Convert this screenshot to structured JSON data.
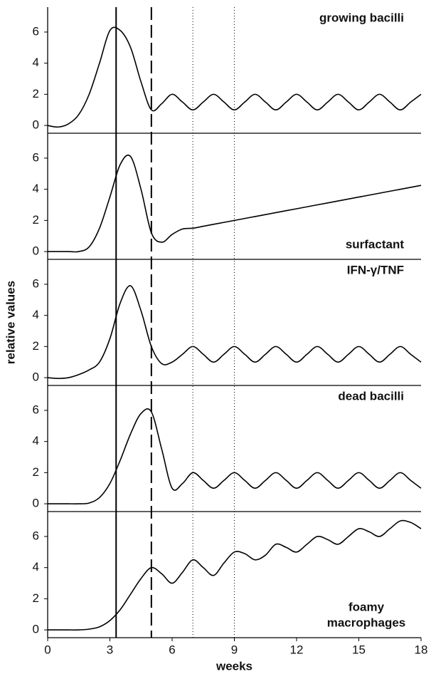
{
  "chart_data": [
    {
      "type": "line",
      "label": "growing bacilli",
      "label_position": "top",
      "x": [
        0,
        0.5,
        1,
        1.5,
        2,
        2.5,
        3,
        3.5,
        4,
        4.5,
        5,
        5.5,
        6,
        6.5,
        7,
        7.5,
        8,
        8.5,
        9,
        9.5,
        10,
        10.5,
        11,
        11.5,
        12,
        12.5,
        13,
        13.5,
        14,
        14.5,
        15,
        15.5,
        16,
        16.5,
        17,
        17.5,
        18
      ],
      "values": [
        0,
        -0.1,
        0.1,
        0.7,
        2.0,
        4.0,
        6.1,
        6.1,
        5.0,
        2.8,
        1.0,
        1.4,
        2,
        1.5,
        1,
        1.5,
        2,
        1.5,
        1,
        1.5,
        2,
        1.5,
        1,
        1.5,
        2,
        1.5,
        1,
        1.5,
        2,
        1.5,
        1,
        1.5,
        2,
        1.5,
        1,
        1.5,
        2
      ],
      "color": "#000000",
      "xlim": [
        0,
        18
      ],
      "ylim": [
        -0.5,
        7.6
      ],
      "yticks": [
        0,
        2,
        4,
        6
      ]
    },
    {
      "type": "line",
      "label": "surfactant",
      "label_position": "bottom",
      "x": [
        0,
        0.5,
        1,
        1.5,
        2,
        2.5,
        3,
        3.5,
        4,
        4.5,
        5,
        5.5,
        6,
        6.5,
        7,
        7.5,
        8,
        8.5,
        9,
        9.5,
        10,
        10.5,
        11,
        11.5,
        12,
        12.5,
        13,
        13.5,
        14,
        14.5,
        15,
        15.5,
        16,
        16.5,
        17,
        17.5,
        18
      ],
      "values": [
        0,
        0,
        0,
        0,
        0.3,
        1.5,
        3.5,
        5.6,
        6.1,
        4.0,
        1.2,
        0.6,
        1.1,
        1.45,
        1.5,
        1.625,
        1.75,
        1.875,
        2.0,
        2.125,
        2.25,
        2.375,
        2.5,
        2.625,
        2.75,
        2.875,
        3.0,
        3.125,
        3.25,
        3.375,
        3.5,
        3.625,
        3.75,
        3.875,
        4.0,
        4.125,
        4.25
      ],
      "color": "#000000",
      "xlim": [
        0,
        18
      ],
      "ylim": [
        -0.5,
        7.6
      ],
      "yticks": [
        0,
        2,
        4,
        6
      ]
    },
    {
      "type": "line",
      "label": "IFN-γ/TNF",
      "label_position": "top",
      "ylabel": "relative values",
      "x": [
        0,
        0.5,
        1,
        1.5,
        2,
        2.5,
        3,
        3.5,
        4,
        4.5,
        5,
        5.5,
        6,
        6.5,
        7,
        7.5,
        8,
        8.5,
        9,
        9.5,
        10,
        10.5,
        11,
        11.5,
        12,
        12.5,
        13,
        13.5,
        14,
        14.5,
        15,
        15.5,
        16,
        16.5,
        17,
        17.5,
        18
      ],
      "values": [
        0,
        -0.05,
        0,
        0.2,
        0.5,
        1.0,
        2.5,
        4.8,
        5.9,
        4.3,
        2.0,
        0.9,
        1.0,
        1.5,
        2,
        1.5,
        1,
        1.5,
        2,
        1.5,
        1,
        1.5,
        2,
        1.5,
        1,
        1.5,
        2,
        1.5,
        1,
        1.5,
        2,
        1.5,
        1,
        1.5,
        2,
        1.5,
        1
      ],
      "color": "#000000",
      "xlim": [
        0,
        18
      ],
      "ylim": [
        -0.5,
        7.6
      ],
      "yticks": [
        0,
        2,
        4,
        6
      ]
    },
    {
      "type": "line",
      "label": "dead bacilli",
      "label_position": "top",
      "x": [
        0,
        0.5,
        1,
        1.5,
        2,
        2.5,
        3,
        3.5,
        4,
        4.5,
        5,
        5.5,
        6,
        6.5,
        7,
        7.5,
        8,
        8.5,
        9,
        9.5,
        10,
        10.5,
        11,
        11.5,
        12,
        12.5,
        13,
        13.5,
        14,
        14.5,
        15,
        15.5,
        16,
        16.5,
        17,
        17.5,
        18
      ],
      "values": [
        0,
        0,
        0,
        0,
        0.05,
        0.4,
        1.3,
        2.8,
        4.5,
        5.8,
        5.9,
        3.5,
        1.0,
        1.3,
        2,
        1.5,
        1,
        1.5,
        2,
        1.5,
        1,
        1.5,
        2,
        1.5,
        1,
        1.5,
        2,
        1.5,
        1,
        1.5,
        2,
        1.5,
        1,
        1.5,
        2,
        1.5,
        1
      ],
      "color": "#000000",
      "xlim": [
        0,
        18
      ],
      "ylim": [
        -0.5,
        7.6
      ],
      "yticks": [
        0,
        2,
        4,
        6
      ]
    },
    {
      "type": "line",
      "label": [
        "foamy",
        "macrophages"
      ],
      "label_position": "bottom",
      "xlabel": "weeks",
      "x": [
        0,
        0.5,
        1,
        1.5,
        2,
        2.5,
        3,
        3.5,
        4,
        4.5,
        5,
        5.5,
        6,
        6.5,
        7,
        7.5,
        8,
        8.5,
        9,
        9.5,
        10,
        10.5,
        11,
        11.5,
        12,
        12.5,
        13,
        13.5,
        14,
        14.5,
        15,
        15.5,
        16,
        16.5,
        17,
        17.5,
        18
      ],
      "values": [
        0,
        0,
        0,
        0,
        0.05,
        0.2,
        0.6,
        1.3,
        2.3,
        3.3,
        4.0,
        3.6,
        3.0,
        3.7,
        4.5,
        4.0,
        3.5,
        4.3,
        5.0,
        4.9,
        4.5,
        4.8,
        5.5,
        5.3,
        5.0,
        5.5,
        6.0,
        5.8,
        5.5,
        6.0,
        6.5,
        6.3,
        6.0,
        6.5,
        7.0,
        6.9,
        6.5
      ],
      "color": "#000000",
      "xlim": [
        0,
        18
      ],
      "ylim": [
        -0.5,
        7.6
      ],
      "yticks": [
        0,
        2,
        4,
        6
      ],
      "xticks": [
        0,
        3,
        6,
        9,
        12,
        15,
        18
      ],
      "vlines": [
        {
          "value": 3.3,
          "style": "solid"
        },
        {
          "value": 5,
          "style": "dashed"
        },
        {
          "value": 7,
          "style": "dotted"
        },
        {
          "value": 9,
          "style": "dotted"
        }
      ]
    }
  ]
}
